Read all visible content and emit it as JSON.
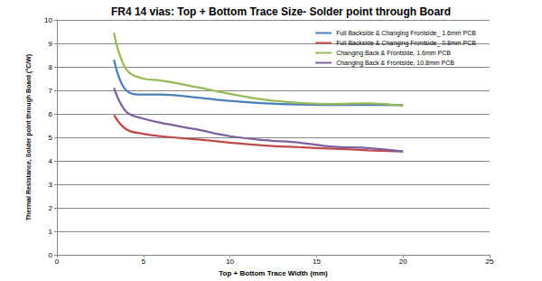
{
  "chart_data": {
    "type": "line",
    "title": "FR4 14 vias: Top + Bottom Trace Size- Solder point through Board",
    "x_label": "Top + Bottom Trace Width (mm)",
    "y_label": "Thermal Resistance, Solder point through Board (°C/W)",
    "xlim": [
      0,
      25
    ],
    "xticks": [
      0,
      5,
      10,
      15,
      20,
      25
    ],
    "ylim": [
      0,
      10
    ],
    "yticks": [
      0,
      1,
      2,
      3,
      4,
      5,
      6,
      7,
      8,
      9,
      10
    ],
    "grid": true,
    "legend": "upper right",
    "marker": "none",
    "line_style": "solid",
    "x": [
      3.3,
      4,
      5,
      6,
      8,
      10,
      12,
      14,
      16,
      18,
      20
    ],
    "series": [
      {
        "name": "Full Backside & Changing Frontside_ 1.6mm PCB",
        "color": "#4a7ebb",
        "values": [
          8.3,
          7.0,
          6.82,
          6.82,
          6.7,
          6.55,
          6.45,
          6.4,
          6.38,
          6.38,
          6.37
        ]
      },
      {
        "name": "Full Backside & Changing Frontside_ 0.8mm PCB",
        "color": "#be4b48",
        "values": [
          5.95,
          5.35,
          5.15,
          5.05,
          4.92,
          4.78,
          4.65,
          4.58,
          4.52,
          4.45,
          4.4
        ]
      },
      {
        "name": "Changing Back & Frontside, 1.6mm PCB",
        "color": "#98b954",
        "values": [
          9.45,
          7.9,
          7.5,
          7.42,
          7.15,
          6.85,
          6.6,
          6.47,
          6.42,
          6.45,
          6.35
        ]
      },
      {
        "name": "Changing Back & Frontside, 10.8mm PCB",
        "color": "#7d60a0",
        "values": [
          7.1,
          6.1,
          5.8,
          5.62,
          5.35,
          5.05,
          4.88,
          4.78,
          4.6,
          4.55,
          4.4
        ]
      }
    ]
  }
}
